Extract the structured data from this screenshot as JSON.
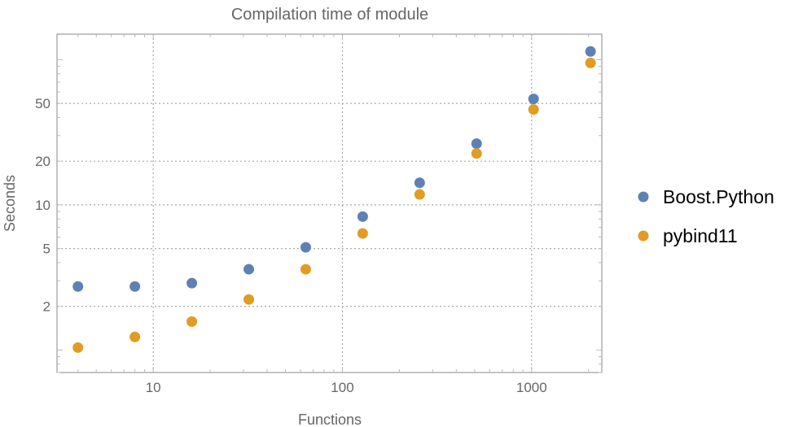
{
  "chart_data": {
    "type": "scatter",
    "title": "Compilation time of module",
    "xlabel": "Functions",
    "ylabel": "Seconds",
    "x_scale": "log",
    "y_scale": "log",
    "xlim": [
      3.1,
      2350
    ],
    "ylim": [
      0.7,
      150
    ],
    "x_ticks": [
      10,
      100,
      1000
    ],
    "x_tick_labels": [
      "10",
      "100",
      "1000"
    ],
    "y_ticks": [
      2,
      5,
      10,
      20,
      50
    ],
    "y_tick_labels": [
      "2",
      "5",
      "10",
      "20",
      "50"
    ],
    "grid": true,
    "legend_position": "right",
    "x": [
      4,
      8,
      16,
      32,
      64,
      128,
      256,
      512,
      1024,
      2048
    ],
    "series": [
      {
        "name": "Boost.Python",
        "color": "#5E81B5",
        "values": [
          2.74,
          2.74,
          2.89,
          3.6,
          5.1,
          8.3,
          14.2,
          26.4,
          53.7,
          114
        ]
      },
      {
        "name": "pybind11",
        "color": "#E19C24",
        "values": [
          1.04,
          1.23,
          1.57,
          2.23,
          3.6,
          6.36,
          11.8,
          22.6,
          45.4,
          95
        ]
      }
    ]
  }
}
